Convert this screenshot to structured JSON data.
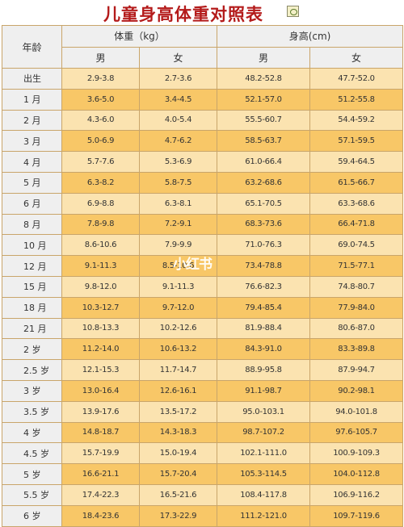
{
  "title": "儿童身高体重对照表",
  "title_icon": "image-icon",
  "header": {
    "age": "年龄",
    "weight": "体重（kg）",
    "height": "身高(cm)",
    "male": "男",
    "female": "女"
  },
  "rows": [
    {
      "age": "出生",
      "w_m": "2.9-3.8",
      "w_f": "2.7-3.6",
      "h_m": "48.2-52.8",
      "h_f": "47.7-52.0"
    },
    {
      "age": "1 月",
      "w_m": "3.6-5.0",
      "w_f": "3.4-4.5",
      "h_m": "52.1-57.0",
      "h_f": "51.2-55.8"
    },
    {
      "age": "2 月",
      "w_m": "4.3-6.0",
      "w_f": "4.0-5.4",
      "h_m": "55.5-60.7",
      "h_f": "54.4-59.2"
    },
    {
      "age": "3 月",
      "w_m": "5.0-6.9",
      "w_f": "4.7-6.2",
      "h_m": "58.5-63.7",
      "h_f": "57.1-59.5"
    },
    {
      "age": "4 月",
      "w_m": "5.7-7.6",
      "w_f": "5.3-6.9",
      "h_m": "61.0-66.4",
      "h_f": "59.4-64.5"
    },
    {
      "age": "5 月",
      "w_m": "6.3-8.2",
      "w_f": "5.8-7.5",
      "h_m": "63.2-68.6",
      "h_f": "61.5-66.7"
    },
    {
      "age": "6 月",
      "w_m": "6.9-8.8",
      "w_f": "6.3-8.1",
      "h_m": "65.1-70.5",
      "h_f": "63.3-68.6"
    },
    {
      "age": "8 月",
      "w_m": "7.8-9.8",
      "w_f": "7.2-9.1",
      "h_m": "68.3-73.6",
      "h_f": "66.4-71.8"
    },
    {
      "age": "10 月",
      "w_m": "8.6-10.6",
      "w_f": "7.9-9.9",
      "h_m": "71.0-76.3",
      "h_f": "69.0-74.5"
    },
    {
      "age": "12 月",
      "w_m": "9.1-11.3",
      "w_f": "8.5-10.6",
      "h_m": "73.4-78.8",
      "h_f": "71.5-77.1"
    },
    {
      "age": "15 月",
      "w_m": "9.8-12.0",
      "w_f": "9.1-11.3",
      "h_m": "76.6-82.3",
      "h_f": "74.8-80.7"
    },
    {
      "age": "18 月",
      "w_m": "10.3-12.7",
      "w_f": "9.7-12.0",
      "h_m": "79.4-85.4",
      "h_f": "77.9-84.0"
    },
    {
      "age": "21 月",
      "w_m": "10.8-13.3",
      "w_f": "10.2-12.6",
      "h_m": "81.9-88.4",
      "h_f": "80.6-87.0"
    },
    {
      "age": "2 岁",
      "w_m": "11.2-14.0",
      "w_f": "10.6-13.2",
      "h_m": "84.3-91.0",
      "h_f": "83.3-89.8"
    },
    {
      "age": "2.5 岁",
      "w_m": "12.1-15.3",
      "w_f": "11.7-14.7",
      "h_m": "88.9-95.8",
      "h_f": "87.9-94.7"
    },
    {
      "age": "3 岁",
      "w_m": "13.0-16.4",
      "w_f": "12.6-16.1",
      "h_m": "91.1-98.7",
      "h_f": "90.2-98.1"
    },
    {
      "age": "3.5 岁",
      "w_m": "13.9-17.6",
      "w_f": "13.5-17.2",
      "h_m": "95.0-103.1",
      "h_f": "94.0-101.8"
    },
    {
      "age": "4 岁",
      "w_m": "14.8-18.7",
      "w_f": "14.3-18.3",
      "h_m": "98.7-107.2",
      "h_f": "97.6-105.7"
    },
    {
      "age": "4.5 岁",
      "w_m": "15.7-19.9",
      "w_f": "15.0-19.4",
      "h_m": "102.1-111.0",
      "h_f": "100.9-109.3"
    },
    {
      "age": "5 岁",
      "w_m": "16.6-21.1",
      "w_f": "15.7-20.4",
      "h_m": "105.3-114.5",
      "h_f": "104.0-112.8"
    },
    {
      "age": "5.5 岁",
      "w_m": "17.4-22.3",
      "w_f": "16.5-21.6",
      "h_m": "108.4-117.8",
      "h_f": "106.9-116.2"
    },
    {
      "age": "6 岁",
      "w_m": "18.4-23.6",
      "w_f": "17.3-22.9",
      "h_m": "111.2-121.0",
      "h_f": "109.7-119.6"
    }
  ],
  "watermark": "小红书",
  "colors": {
    "title": "#b41b1b",
    "row_light": "#fbe3b0",
    "row_dark": "#f8c767",
    "header_bg": "#efefef",
    "border": "#c9a56a"
  }
}
